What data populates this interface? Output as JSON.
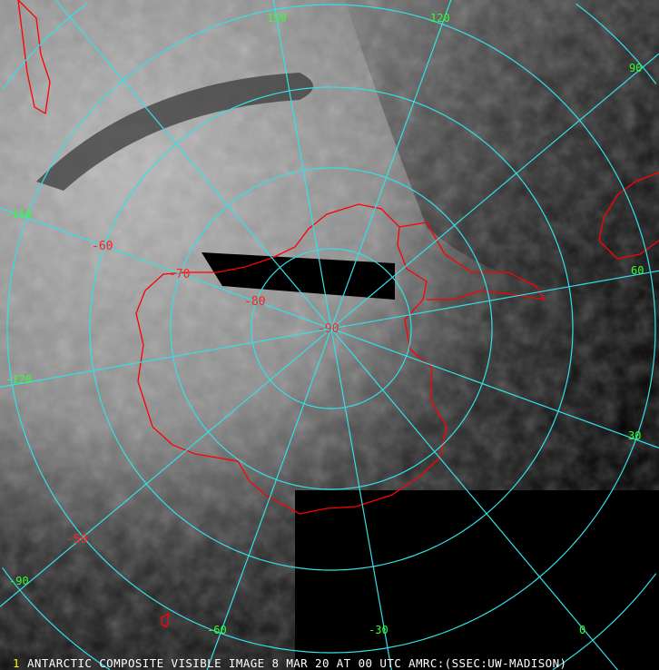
{
  "caption": "ANTARCTIC COMPOSITE VISIBLE IMAGE 8 MAR 20 AT 00 UTC AMRC:(SSEC:UW-MADISON)",
  "caption_marker": "1",
  "projection": "polar stereographic, south pole",
  "longitude_labels": [
    "150",
    "120",
    "90",
    "60",
    "30",
    "0",
    "-30",
    "-60",
    "-90",
    "-120",
    "-150"
  ],
  "latitude_labels": [
    "-50",
    "-60",
    "-70",
    "-80",
    "-90"
  ],
  "colors": {
    "graticule": "#33e0e8",
    "coastline": "#ff0000",
    "longitude_label": "#33ff33",
    "latitude_label": "#ff2020",
    "caption": "#ffffff"
  }
}
